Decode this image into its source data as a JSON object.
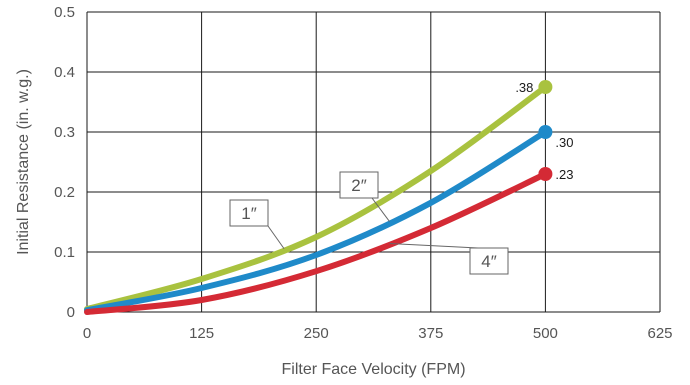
{
  "chart_data": {
    "type": "line",
    "title": "",
    "xlabel": "Filter Face Velocity (FPM)",
    "ylabel": "Initial Resistance (in. w.g.)",
    "xlim": [
      0,
      625
    ],
    "ylim": [
      0,
      0.5
    ],
    "x_ticks": [
      "0",
      "125",
      "250",
      "375",
      "500",
      "625"
    ],
    "y_ticks": [
      "0",
      "0.1",
      "0.2",
      "0.3",
      "0.4",
      "0.5"
    ],
    "grid": true,
    "series": [
      {
        "name": "1″",
        "color": "#a9c23f",
        "end_label": ".38",
        "points": [
          [
            0,
            0.005
          ],
          [
            125,
            0.055
          ],
          [
            250,
            0.125
          ],
          [
            375,
            0.235
          ],
          [
            500,
            0.375
          ]
        ]
      },
      {
        "name": "2″",
        "color": "#1f8ac9",
        "end_label": ".30",
        "points": [
          [
            0,
            0.003
          ],
          [
            125,
            0.04
          ],
          [
            250,
            0.095
          ],
          [
            375,
            0.182
          ],
          [
            500,
            0.3
          ]
        ]
      },
      {
        "name": "4″",
        "color": "#d42a35",
        "end_label": ".23",
        "points": [
          [
            0,
            0.0
          ],
          [
            125,
            0.02
          ],
          [
            250,
            0.068
          ],
          [
            375,
            0.14
          ],
          [
            500,
            0.23
          ]
        ]
      }
    ]
  }
}
